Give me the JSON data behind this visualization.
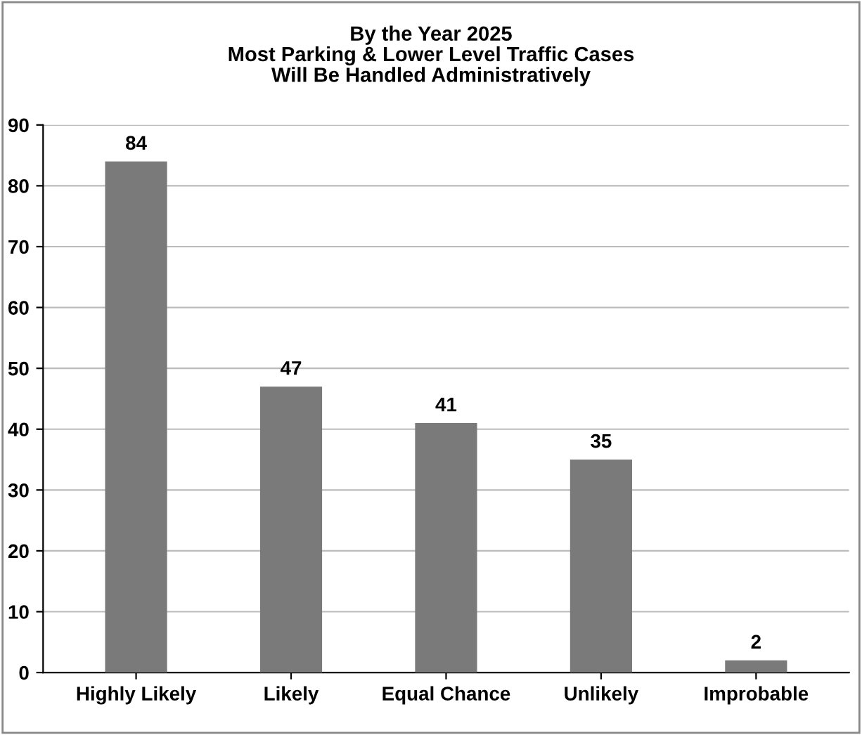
{
  "chart_data": {
    "type": "bar",
    "title": "By the Year 2025\nMost Parking & Lower Level Traffic Cases\nWill Be Handled Administratively",
    "categories": [
      "Highly Likely",
      "Likely",
      "Equal Chance",
      "Unlikely",
      "Improbable"
    ],
    "values": [
      84,
      47,
      41,
      35,
      2
    ],
    "color": "#7a7a7a",
    "ylim": [
      0,
      90
    ],
    "yticks": [
      0,
      10,
      20,
      30,
      40,
      50,
      60,
      70,
      80,
      90
    ],
    "grid": "y",
    "data_labels": true,
    "legend": false
  }
}
